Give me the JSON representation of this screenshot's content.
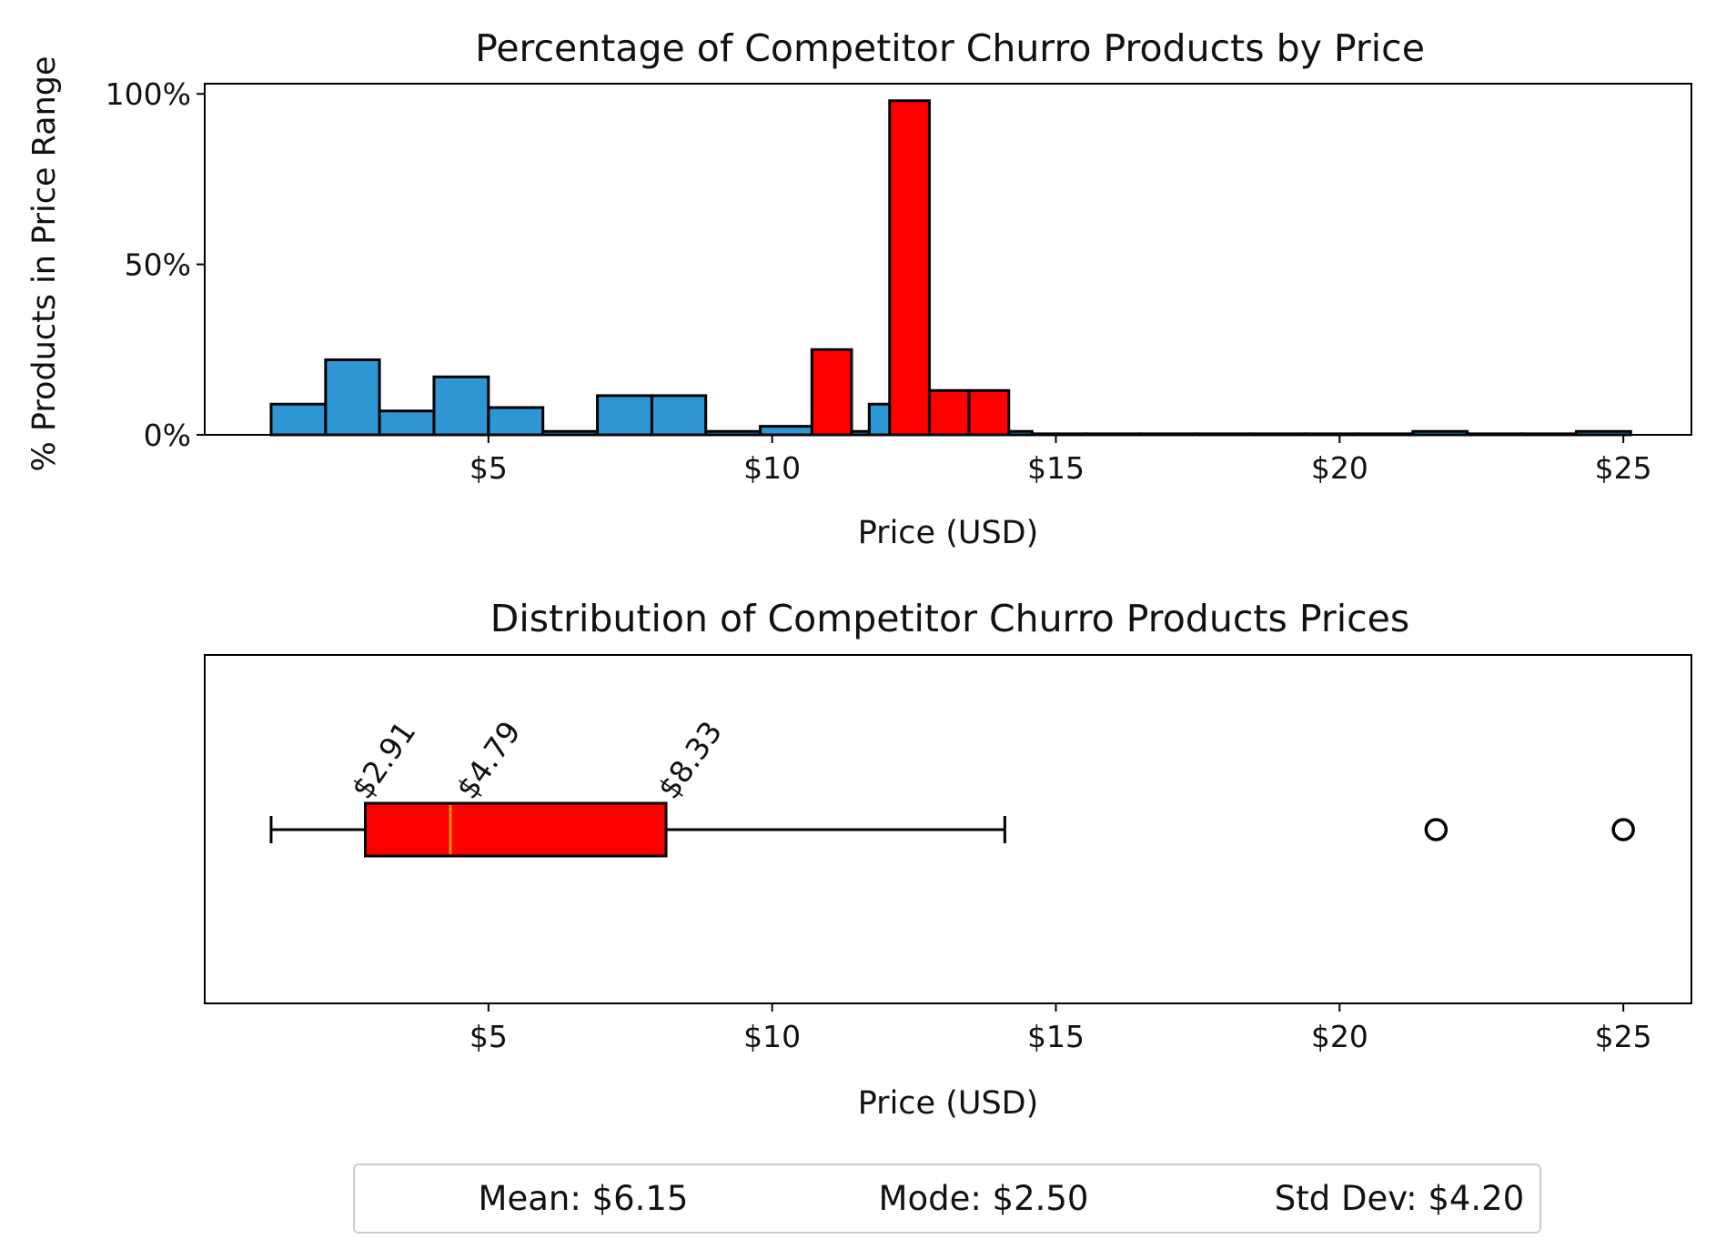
{
  "chart_data": [
    {
      "type": "bar",
      "title": "Percentage of Competitor Churro Products by Price",
      "xlabel": "Price (USD)",
      "ylabel": "% Products in Price Range",
      "xlim": [
        0,
        26.2
      ],
      "ylim": [
        0,
        103
      ],
      "x_ticks": [
        5,
        10,
        15,
        20,
        25
      ],
      "x_tick_labels": [
        "$5",
        "$10",
        "$15",
        "$20",
        "$25"
      ],
      "y_ticks": [
        0,
        50,
        100
      ],
      "y_tick_labels": [
        "0%",
        "50%",
        "100%"
      ],
      "series": [
        {
          "color": "#2e96d3",
          "bins": [
            {
              "x0": 1.17,
              "x1": 2.13,
              "value": 9
            },
            {
              "x0": 2.13,
              "x1": 3.08,
              "value": 22
            },
            {
              "x0": 3.08,
              "x1": 4.04,
              "value": 7
            },
            {
              "x0": 4.04,
              "x1": 5.0,
              "value": 17
            },
            {
              "x0": 5.0,
              "x1": 5.96,
              "value": 8
            },
            {
              "x0": 5.96,
              "x1": 6.92,
              "value": 1
            },
            {
              "x0": 6.92,
              "x1": 7.88,
              "value": 11.5
            },
            {
              "x0": 7.88,
              "x1": 8.83,
              "value": 11.5
            },
            {
              "x0": 8.83,
              "x1": 9.79,
              "value": 1
            },
            {
              "x0": 9.79,
              "x1": 10.75,
              "value": 2.5
            },
            {
              "x0": 10.75,
              "x1": 11.71,
              "value": 1
            },
            {
              "x0": 11.71,
              "x1": 12.67,
              "value": 9
            },
            {
              "x0": 12.67,
              "x1": 13.63,
              "value": 1
            },
            {
              "x0": 13.63,
              "x1": 14.58,
              "value": 1
            },
            {
              "x0": 14.58,
              "x1": 15.54,
              "value": 0.3
            },
            {
              "x0": 15.54,
              "x1": 16.5,
              "value": 0.3
            },
            {
              "x0": 16.5,
              "x1": 17.46,
              "value": 0.3
            },
            {
              "x0": 17.46,
              "x1": 18.42,
              "value": 0.3
            },
            {
              "x0": 18.42,
              "x1": 19.38,
              "value": 0.3
            },
            {
              "x0": 19.38,
              "x1": 20.33,
              "value": 0.3
            },
            {
              "x0": 20.33,
              "x1": 21.29,
              "value": 0.3
            },
            {
              "x0": 21.29,
              "x1": 22.25,
              "value": 1
            },
            {
              "x0": 22.25,
              "x1": 23.21,
              "value": 0.3
            },
            {
              "x0": 23.21,
              "x1": 24.17,
              "value": 0.3
            },
            {
              "x0": 24.17,
              "x1": 25.13,
              "value": 1
            }
          ]
        },
        {
          "color": "#ff0000",
          "bins": [
            {
              "x0": 10.7,
              "x1": 11.4,
              "value": 25
            },
            {
              "x0": 12.07,
              "x1": 12.77,
              "value": 98
            },
            {
              "x0": 12.77,
              "x1": 13.47,
              "value": 13
            },
            {
              "x0": 13.47,
              "x1": 14.17,
              "value": 13
            }
          ]
        }
      ]
    },
    {
      "type": "box",
      "title": "Distribution of Competitor Churro Products Prices",
      "xlabel": "Price (USD)",
      "xlim": [
        0,
        26.2
      ],
      "x_ticks": [
        5,
        10,
        15,
        20,
        25
      ],
      "x_tick_labels": [
        "$5",
        "$10",
        "$15",
        "$20",
        "$25"
      ],
      "box": {
        "whisker_low": 1.17,
        "q1": 2.83,
        "median": 4.33,
        "q3": 8.13,
        "whisker_high": 14.1,
        "outliers": [
          21.7,
          25.0
        ],
        "box_color": "#ff0000",
        "median_color": "#ff8c00"
      },
      "annotations": [
        {
          "value": 3.3,
          "label": "$2.91"
        },
        {
          "value": 5.15,
          "label": "$4.79"
        },
        {
          "value": 8.7,
          "label": "$8.33"
        }
      ]
    }
  ],
  "stats": {
    "mean": "Mean: $6.15",
    "mode": "Mode: $2.50",
    "std": "Std Dev: $4.20"
  }
}
